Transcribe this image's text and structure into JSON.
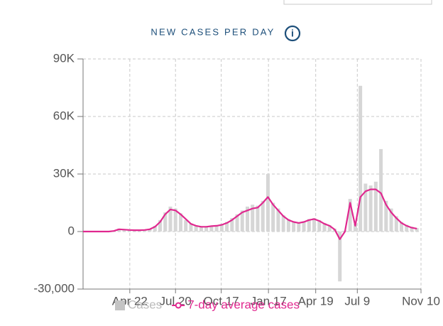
{
  "chart_data": {
    "type": "combo",
    "title": "NEW CASES PER DAY",
    "x": [
      0,
      10,
      20,
      30,
      40,
      50,
      60,
      70,
      80,
      90,
      100,
      110,
      120,
      130,
      140,
      150,
      160,
      170,
      180,
      190,
      200,
      210,
      220,
      230,
      240,
      250,
      260,
      270,
      280,
      290,
      300,
      310,
      320,
      330,
      340,
      350,
      360,
      370,
      380,
      390,
      400,
      410,
      420,
      430,
      440,
      450,
      460,
      470,
      480,
      490,
      500,
      510,
      520,
      530,
      540,
      550,
      560,
      570,
      580,
      590,
      600,
      610,
      620,
      630,
      640,
      650
    ],
    "xlim": [
      0,
      658
    ],
    "xticks": [
      {
        "value": 91,
        "label": "Apr 22"
      },
      {
        "value": 180,
        "label": "Jul 20"
      },
      {
        "value": 269,
        "label": "Oct 17"
      },
      {
        "value": 361,
        "label": "Jan 17"
      },
      {
        "value": 453,
        "label": "Apr 19"
      },
      {
        "value": 534,
        "label": "Jul 9"
      },
      {
        "value": 658,
        "label": "Nov 10"
      }
    ],
    "ylim": [
      -30000,
      90000
    ],
    "yticks": [
      {
        "value": -30000,
        "label": "-30,000"
      },
      0,
      {
        "value": 30000,
        "label": "30K"
      },
      {
        "value": 60000,
        "label": "60K"
      },
      {
        "value": 90000,
        "label": "90K"
      }
    ],
    "grid": true,
    "series": [
      {
        "name": "Cases",
        "type": "bar",
        "color": "#d6d6d6",
        "values": [
          0,
          0,
          0,
          0,
          0,
          0,
          500,
          1500,
          900,
          700,
          600,
          800,
          900,
          1500,
          3000,
          6000,
          10000,
          13000,
          12000,
          9500,
          6000,
          4200,
          3200,
          2600,
          2400,
          3000,
          3300,
          3800,
          5000,
          7000,
          9000,
          11000,
          13000,
          14000,
          13500,
          16000,
          30000,
          15000,
          12000,
          8500,
          6500,
          5200,
          4600,
          5300,
          6500,
          7000,
          6000,
          4500,
          3300,
          1500,
          -26000,
          500,
          17000,
          4000,
          76000,
          25000,
          24000,
          26000,
          43000,
          16000,
          12000,
          8000,
          5000,
          3500,
          2500,
          1800
        ]
      },
      {
        "name": "7-day average cases",
        "type": "line",
        "color": "#e0288f",
        "values": [
          0,
          0,
          0,
          0,
          0,
          0,
          300,
          1200,
          1000,
          800,
          700,
          700,
          800,
          1200,
          2500,
          5000,
          9000,
          11500,
          11000,
          9000,
          6500,
          4000,
          3000,
          2500,
          2500,
          2800,
          3000,
          3500,
          4500,
          6000,
          8000,
          10000,
          11000,
          12000,
          12500,
          15000,
          18000,
          14000,
          11000,
          8000,
          6000,
          5000,
          4500,
          5000,
          6000,
          6500,
          5500,
          4000,
          3000,
          1000,
          -4000,
          0,
          15000,
          3000,
          18000,
          21000,
          22000,
          22000,
          20000,
          14000,
          10000,
          7000,
          4500,
          3000,
          2000,
          1500
        ]
      }
    ]
  }
}
